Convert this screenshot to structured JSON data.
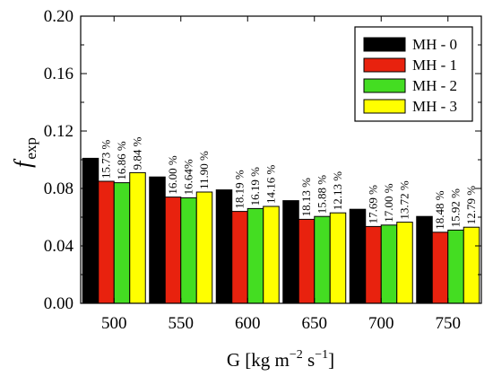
{
  "chart_data": {
    "type": "bar",
    "categories": [
      "500",
      "550",
      "600",
      "650",
      "700",
      "750"
    ],
    "series": [
      {
        "name": "MH - 0",
        "color": "#000000",
        "values": [
          0.101,
          0.088,
          0.079,
          0.0715,
          0.0655,
          0.0605
        ]
      },
      {
        "name": "MH - 1",
        "color": "#e8220e",
        "values": [
          0.085,
          0.074,
          0.064,
          0.0585,
          0.0535,
          0.0495
        ]
      },
      {
        "name": "MH - 2",
        "color": "#44dd22",
        "values": [
          0.084,
          0.0735,
          0.066,
          0.0605,
          0.0545,
          0.051
        ]
      },
      {
        "name": "MH - 3",
        "color": "#ffff00",
        "values": [
          0.091,
          0.0775,
          0.0675,
          0.063,
          0.0565,
          0.053
        ]
      }
    ],
    "annotations": [
      [
        "15.73 %",
        "16.86 %",
        "9.84 %"
      ],
      [
        "16.00 %",
        "16.64%",
        "11.90 %"
      ],
      [
        "18.19 %",
        "16.19 %",
        "14.16 %"
      ],
      [
        "18.13 %",
        "15.88 %",
        "12.13 %"
      ],
      [
        "17.69 %",
        "17.00 %",
        "13.72 %"
      ],
      [
        "18.48 %",
        "15.92 %",
        "12.79 %"
      ]
    ],
    "ylim": [
      0.0,
      0.2
    ],
    "yticks": [
      "0.00",
      "0.04",
      "0.08",
      "0.12",
      "0.16",
      "0.20"
    ],
    "ylabel_main": "f",
    "ylabel_sub": "exp",
    "xlabel_prefix": "G [kg m",
    "xlabel_sup1": "−2",
    "xlabel_mid": " s",
    "xlabel_sup2": "−1",
    "xlabel_suffix": "]",
    "legend_position": "top-right",
    "grid": false
  }
}
